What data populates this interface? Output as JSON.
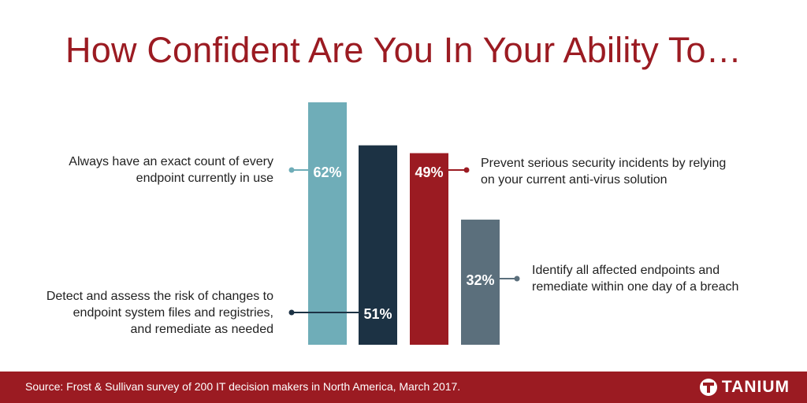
{
  "title": "How Confident Are You In Your Ability To…",
  "chart_data": {
    "type": "bar",
    "ylim": [
      0,
      70
    ],
    "bars": [
      {
        "value": 62,
        "label": "62%",
        "color": "#6fadb8",
        "description": "Always have an exact count of every endpoint currently in use"
      },
      {
        "value": 51,
        "label": "51%",
        "color": "#1c3244",
        "description": "Detect and assess the risk of changes to endpoint system files and registries, and remediate as needed"
      },
      {
        "value": 49,
        "label": "49%",
        "color": "#9b1b22",
        "description": "Prevent serious security incidents by relying on your current anti-virus solution"
      },
      {
        "value": 32,
        "label": "32%",
        "color": "#5b6f7c",
        "description": "Identify all affected endpoints and remediate within one day of a breach"
      }
    ]
  },
  "labels": {
    "bar1": [
      "Always have an exact count of every",
      "endpoint currently in use"
    ],
    "bar2": [
      "Detect and assess the risk of changes to",
      "endpoint system files and registries,",
      "and remediate as needed"
    ],
    "bar3": [
      "Prevent serious security incidents by relying",
      "on your current anti-virus solution"
    ],
    "bar4": [
      "Identify all affected endpoints and",
      "remediate within one day of a breach"
    ]
  },
  "footer": {
    "source": "Source: Frost & Sullivan survey of 200 IT decision makers in North America, March 2017.",
    "brand": "TANIUM"
  }
}
